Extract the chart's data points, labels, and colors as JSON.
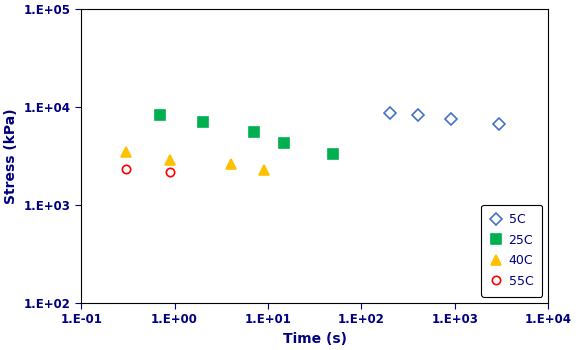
{
  "series": {
    "5C": {
      "time": [
        200,
        400,
        900,
        3000
      ],
      "stress": [
        8700,
        8300,
        7500,
        6700
      ],
      "color": "#4472C4",
      "marker": "D",
      "markersize": 6,
      "label": "5C",
      "fillstyle": "none",
      "linewidth": 1.2
    },
    "25C": {
      "time": [
        0.7,
        2.0,
        7.0,
        15.0,
        50.0
      ],
      "stress": [
        8300,
        7100,
        5500,
        4300,
        3300
      ],
      "color": "#00B050",
      "marker": "s",
      "markersize": 7,
      "label": "25C",
      "fillstyle": "full",
      "linewidth": 0
    },
    "40C": {
      "time": [
        0.3,
        0.9,
        4.0,
        9.0
      ],
      "stress": [
        3500,
        2900,
        2600,
        2250
      ],
      "color": "#FFC000",
      "marker": "^",
      "markersize": 7,
      "label": "40C",
      "fillstyle": "full",
      "linewidth": 0
    },
    "55C": {
      "time": [
        0.3,
        0.9
      ],
      "stress": [
        2350,
        2150
      ],
      "color": "#FF0000",
      "marker": "o",
      "markersize": 6,
      "label": "55C",
      "fillstyle": "none",
      "linewidth": 1.2
    }
  },
  "xlabel": "Time (s)",
  "ylabel": "Stress (kPa)",
  "xlim": [
    0.1,
    10000
  ],
  "ylim": [
    100,
    100000
  ],
  "label_color": "#000080",
  "tick_color": "#000080",
  "axis_label_fontsize": 10,
  "tick_fontsize": 8.5,
  "legend_fontsize": 9
}
